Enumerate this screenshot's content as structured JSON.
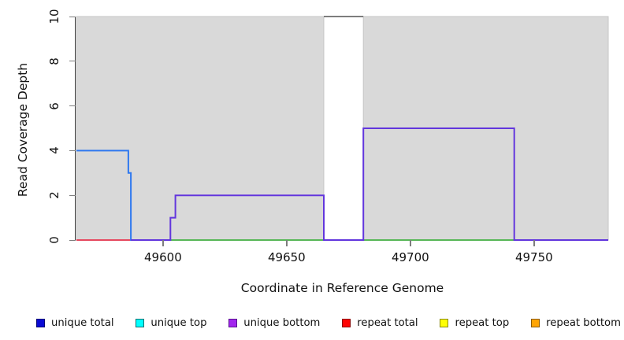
{
  "chart_data": {
    "type": "line",
    "subtype": "step-coverage-plot",
    "title": "",
    "xlabel": "Coordinate in Reference Genome",
    "ylabel": "Read Coverage Depth",
    "xlim": [
      49565,
      49780
    ],
    "ylim": [
      0,
      10
    ],
    "x_ticks": [
      49600,
      49650,
      49700,
      49750
    ],
    "y_ticks": [
      0,
      2,
      4,
      6,
      8,
      10
    ],
    "grid": false,
    "shaded_regions": [
      [
        49565,
        49665
      ],
      [
        49681,
        49780
      ]
    ],
    "colors": {
      "shading": "#d9d9d9",
      "shading_border": "#c6c6c6",
      "axis": "#3c3c3c",
      "tick": "#7d7d7d",
      "text": "#111111"
    },
    "series": [
      {
        "id": "repeat-total-line",
        "name": "repeat total",
        "color": "#e6485f",
        "segments": [
          [
            [
              49565,
              0
            ],
            [
              49587,
              0
            ]
          ]
        ]
      },
      {
        "id": "green-zero-line",
        "name": "zero coverage (green)",
        "color": "#57b757",
        "segments": [
          [
            [
              49603,
              0
            ],
            [
              49665,
              0
            ]
          ],
          [
            [
              49681,
              0
            ],
            [
              49742,
              0
            ]
          ]
        ]
      },
      {
        "id": "unique-total-line",
        "name": "unique total",
        "color": "#2e78f0",
        "segments": [
          [
            [
              49565,
              4
            ],
            [
              49586,
              4
            ],
            [
              49586,
              3
            ],
            [
              49587,
              3
            ],
            [
              49587,
              0
            ],
            [
              49603,
              0
            ]
          ]
        ]
      },
      {
        "id": "unique-bottom-line",
        "name": "unique bottom",
        "color": "#6236dd",
        "segments": [
          [
            [
              49587,
              0
            ],
            [
              49603,
              0
            ],
            [
              49603,
              1
            ],
            [
              49605,
              1
            ],
            [
              49605,
              2
            ],
            [
              49665,
              2
            ],
            [
              49665,
              0
            ],
            [
              49681,
              0
            ],
            [
              49681,
              5
            ],
            [
              49742,
              5
            ],
            [
              49742,
              0
            ],
            [
              49780,
              0
            ]
          ]
        ]
      },
      {
        "id": "clipped-coverage-line",
        "name": "clipped coverage at ymax",
        "color": "#7d7d7d",
        "segments": [
          [
            [
              49665,
              10
            ],
            [
              49681,
              10
            ]
          ]
        ]
      }
    ],
    "legend": {
      "position": "bottom",
      "items": [
        {
          "label": "unique total",
          "fill": "#0a0ad4",
          "border": "#050572"
        },
        {
          "label": "unique top",
          "fill": "#00ffff",
          "border": "#0b7070"
        },
        {
          "label": "unique bottom",
          "fill": "#a226ee",
          "border": "#5a1490"
        },
        {
          "label": "repeat total",
          "fill": "#ff0505",
          "border": "#8b0000"
        },
        {
          "label": "repeat top",
          "fill": "#ffff05",
          "border": "#8b8b00"
        },
        {
          "label": "repeat bottom",
          "fill": "#ffa505",
          "border": "#8b5a00"
        }
      ]
    }
  }
}
